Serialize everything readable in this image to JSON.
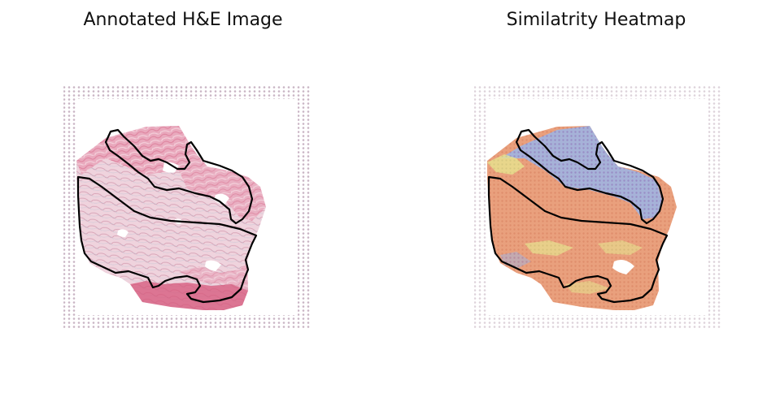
{
  "figure": {
    "left_title": "Annotated H&E Image",
    "right_title": "Similatrity Heatmap"
  },
  "colors": {
    "background": "#ffffff",
    "annotation_outline": "#000000",
    "fiducial_dot": "#c9b4c4",
    "he_tissue_light": "#f1dfe6",
    "he_tissue_pink": "#e9a9bd",
    "he_tissue_dark": "#d6567a",
    "heat_low": "#e9a07d",
    "heat_mid": "#e8e38f",
    "heat_high": "#9fb4e2"
  },
  "icons": {
    "left_panel": "he-stained-tissue-image",
    "right_panel": "similarity-heatmap-image"
  }
}
